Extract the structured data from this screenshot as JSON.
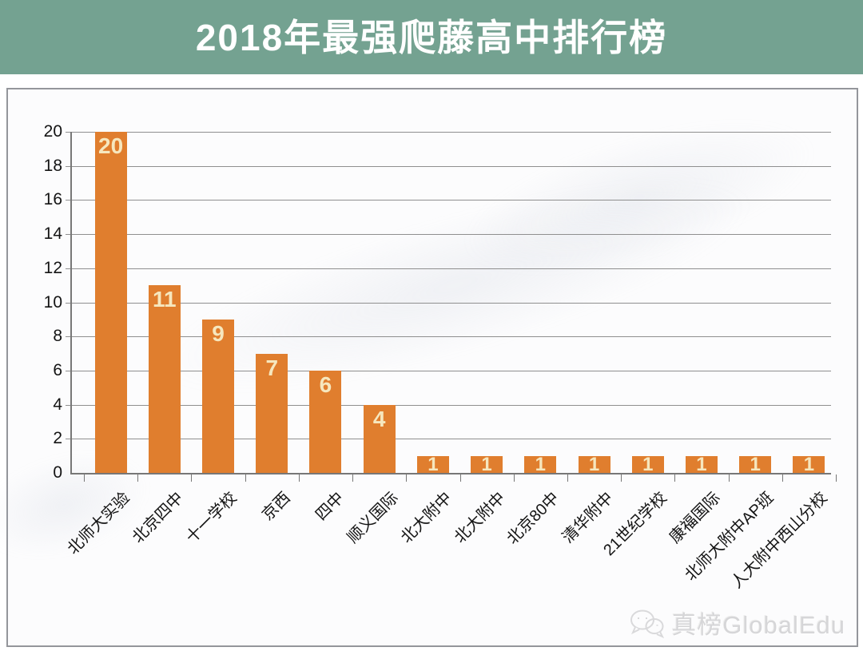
{
  "header": {
    "title": "2018年最强爬藤高中排行榜"
  },
  "chart_data": {
    "type": "bar",
    "title": "2018年最强爬藤高中排行榜",
    "categories": [
      "北师大实验",
      "北京四中",
      "十一学校",
      "京西",
      "四中",
      "顺义国际",
      "北大附中",
      "北大附中",
      "北京80中",
      "清华附中",
      "21世纪学校",
      "康福国际",
      "北师大附中AP班",
      "人大附中西山分校"
    ],
    "values": [
      20,
      11,
      9,
      7,
      6,
      4,
      1,
      1,
      1,
      1,
      1,
      1,
      1,
      1
    ],
    "value_labels_shown": true,
    "xlabel": "",
    "ylabel": "",
    "ylim": [
      0,
      20
    ],
    "yticks": [
      0,
      2,
      4,
      6,
      8,
      10,
      12,
      14,
      16,
      18,
      20
    ],
    "grid": "horizontal",
    "legend": "none",
    "bar_color": "#E07E2E",
    "value_label_color": "#F6E7BE"
  },
  "brand": {
    "text": "真榜GlobalEdu",
    "icon": "wechat-icon"
  },
  "colors": {
    "header_bg": "#74A291",
    "title_text": "#FFFFFF",
    "frame_border": "#94969B",
    "grid_line": "#8F8F8F",
    "axis_text": "#141414",
    "watermark_text": "#D6D6D8"
  }
}
